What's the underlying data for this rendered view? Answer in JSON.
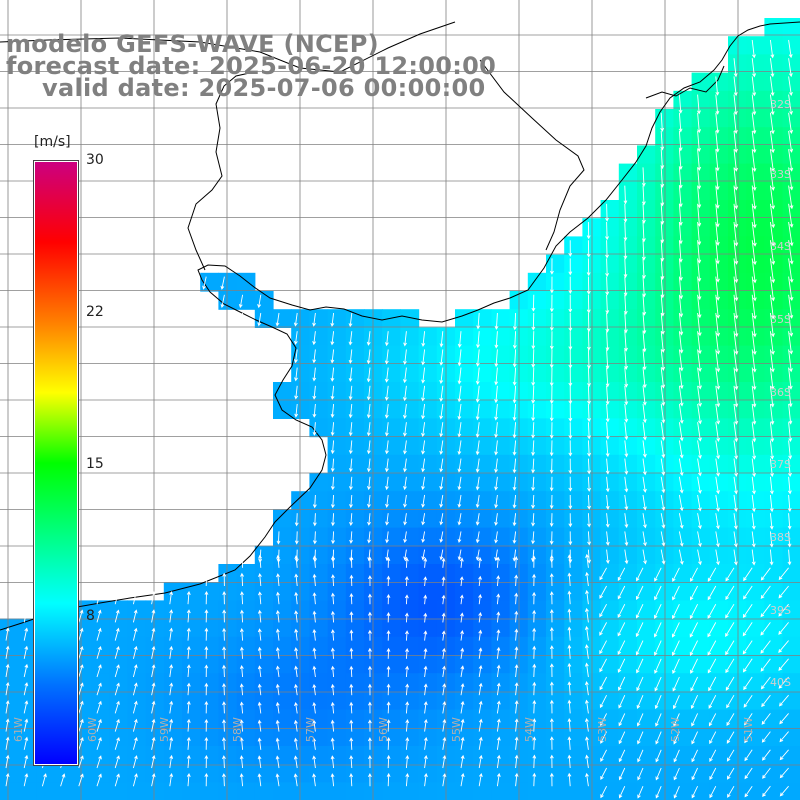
{
  "title": {
    "line1": "modelo GEFS-WAVE (NCEP)",
    "line2": "forecast date: 2025-06-20 12:00:00",
    "line3": "valid date: 2025-07-06 00:00:00"
  },
  "colorbar": {
    "unit": "[m/s]",
    "ticks": [
      "30",
      "22",
      "15",
      "8"
    ],
    "tick_values": [
      30,
      22,
      15,
      8
    ],
    "range": [
      0,
      30
    ],
    "stops": [
      {
        "v": 0,
        "color": "#0000ff"
      },
      {
        "v": 4,
        "color": "#0073ff"
      },
      {
        "v": 8,
        "color": "#00ffff"
      },
      {
        "v": 11.5,
        "color": "#00ff80"
      },
      {
        "v": 15,
        "color": "#00ff00"
      },
      {
        "v": 18.5,
        "color": "#ffff00"
      },
      {
        "v": 22,
        "color": "#ff8000"
      },
      {
        "v": 26,
        "color": "#ff0000"
      },
      {
        "v": 30,
        "color": "#cc0080"
      }
    ]
  },
  "map": {
    "lon_labels": [
      "61W",
      "60W",
      "59W",
      "58W",
      "57W",
      "56W",
      "55W",
      "54W",
      "53W",
      "52W",
      "51W"
    ],
    "lat_labels": [
      "32S",
      "33S",
      "34S",
      "35S",
      "36S",
      "37S",
      "38S",
      "39S",
      "40S"
    ],
    "land_color": "#ffffff",
    "grid_color": "#808080",
    "coast_color": "#000000",
    "arrow_color": "#ffffff"
  }
}
